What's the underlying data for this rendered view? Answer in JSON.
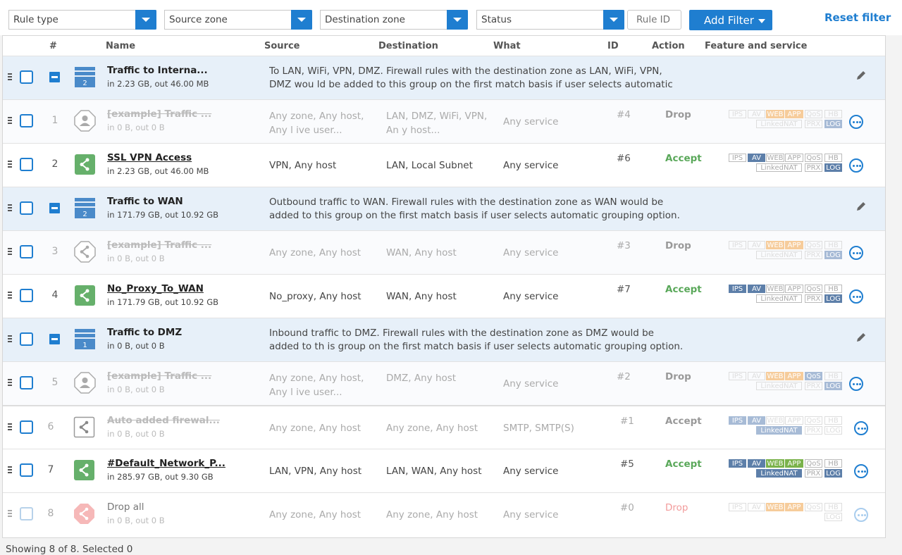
{
  "filters": {
    "rule_type": "Rule type",
    "source_zone": "Source zone",
    "destination_zone": "Destination zone",
    "status": "Status",
    "rule_id_placeholder": "Rule ID",
    "add_filter": "Add Filter",
    "reset_filter": "Reset filter"
  },
  "columns": {
    "num": "#",
    "name": "Name",
    "source": "Source",
    "destination": "Destination",
    "what": "What",
    "id": "ID",
    "action": "Action",
    "feature": "Feature and service"
  },
  "badge_labels": {
    "ips": "IPS",
    "av": "AV",
    "web": "WEB",
    "app": "APP",
    "qos": "QoS",
    "hb": "HB",
    "linkednat": "LinkedNAT",
    "prx": "PRX",
    "log": "LOG"
  },
  "groups": [
    {
      "name": "Traffic to Interna...",
      "traffic": "in 2.23 GB, out 46.00 MB",
      "count": "2",
      "description": "To LAN, WiFi, VPN, DMZ. Firewall rules with the destination zone as LAN, WiFi, VPN, DMZ wou ld be added to this group on the first match basis if user selects automatic grouping optio..."
    },
    {
      "name": "Traffic to WAN",
      "traffic": "in 171.79 GB, out 10.92 GB",
      "count": "2",
      "description": "Outbound traffic to WAN. Firewall rules with the destination zone as WAN would be added to this group on the first match basis if user selects automatic grouping option. This is the d..."
    },
    {
      "name": "Traffic to DMZ",
      "traffic": "in 0 B, out 0 B",
      "count": "1",
      "description": "Inbound traffic to DMZ. Firewall rules with the destination zone as DMZ would be added to th is group on the first match basis if user selects automatic grouping option. This is the de..."
    }
  ],
  "rules": [
    {
      "num": "1",
      "name": "[example] Traffic ...",
      "traffic": "in 0 B, out 0 B",
      "source": "Any zone, Any host, Any l ive user...",
      "destination": "LAN, DMZ, WiFi, VPN, An y host...",
      "what": "Any service",
      "id": "#4",
      "action": "Drop"
    },
    {
      "num": "2",
      "name": "SSL VPN Access",
      "traffic": "in 2.23 GB, out 46.00 MB",
      "source": "VPN, Any host",
      "destination": "LAN, Local Subnet",
      "what": "Any service",
      "id": "#6",
      "action": "Accept"
    },
    {
      "num": "3",
      "name": "[example] Traffic ...",
      "traffic": "in 0 B, out 0 B",
      "source": "Any zone, Any host",
      "destination": "WAN, Any host",
      "what": "Any service",
      "id": "#3",
      "action": "Drop"
    },
    {
      "num": "4",
      "name": "No_Proxy_To_WAN",
      "traffic": "in 171.79 GB, out 10.92 GB",
      "source": "No_proxy, Any host",
      "destination": "WAN, Any host",
      "what": "Any service",
      "id": "#7",
      "action": "Accept"
    },
    {
      "num": "5",
      "name": "[example] Traffic ...",
      "traffic": "in 0 B, out 0 B",
      "source": "Any zone, Any host, Any l ive user...",
      "destination": "DMZ, Any host",
      "what": "Any service",
      "id": "#2",
      "action": "Drop"
    },
    {
      "num": "6",
      "name": "Auto added firewal...",
      "traffic": "in 0 B, out 0 B",
      "source": "Any zone, Any host",
      "destination": "Any zone, Any host",
      "what": "SMTP, SMTP(S)",
      "id": "#1",
      "action": "Accept"
    },
    {
      "num": "7",
      "name": "#Default_Network_P...",
      "traffic": "in 285.97 GB, out 9.30 GB",
      "source": "LAN, VPN, Any host",
      "destination": "LAN, WAN, Any host",
      "what": "Any service",
      "id": "#5",
      "action": "Accept"
    },
    {
      "num": "8",
      "name": "Drop all",
      "traffic": "in 0 B, out 0 B",
      "source": "Any zone, Any host",
      "destination": "Any zone, Any host",
      "what": "Any service",
      "id": "#0",
      "action": "Drop"
    }
  ],
  "footer": "Showing 8 of 8. Selected 0",
  "colors": {
    "accent": "#1f7ed0",
    "accept": "#5aa85a",
    "group_bg": "#e7f0f9",
    "badge_on": "#5d7fa9",
    "badge_web": "#7ab24b",
    "badge_orange": "#f6cc9b"
  },
  "icons": {
    "group": "group-stack-icon",
    "user_rule": "user-octagon-icon",
    "network_rule": "share-nodes-icon",
    "edit": "pencil-icon",
    "more": "ellipsis-circle-icon"
  }
}
